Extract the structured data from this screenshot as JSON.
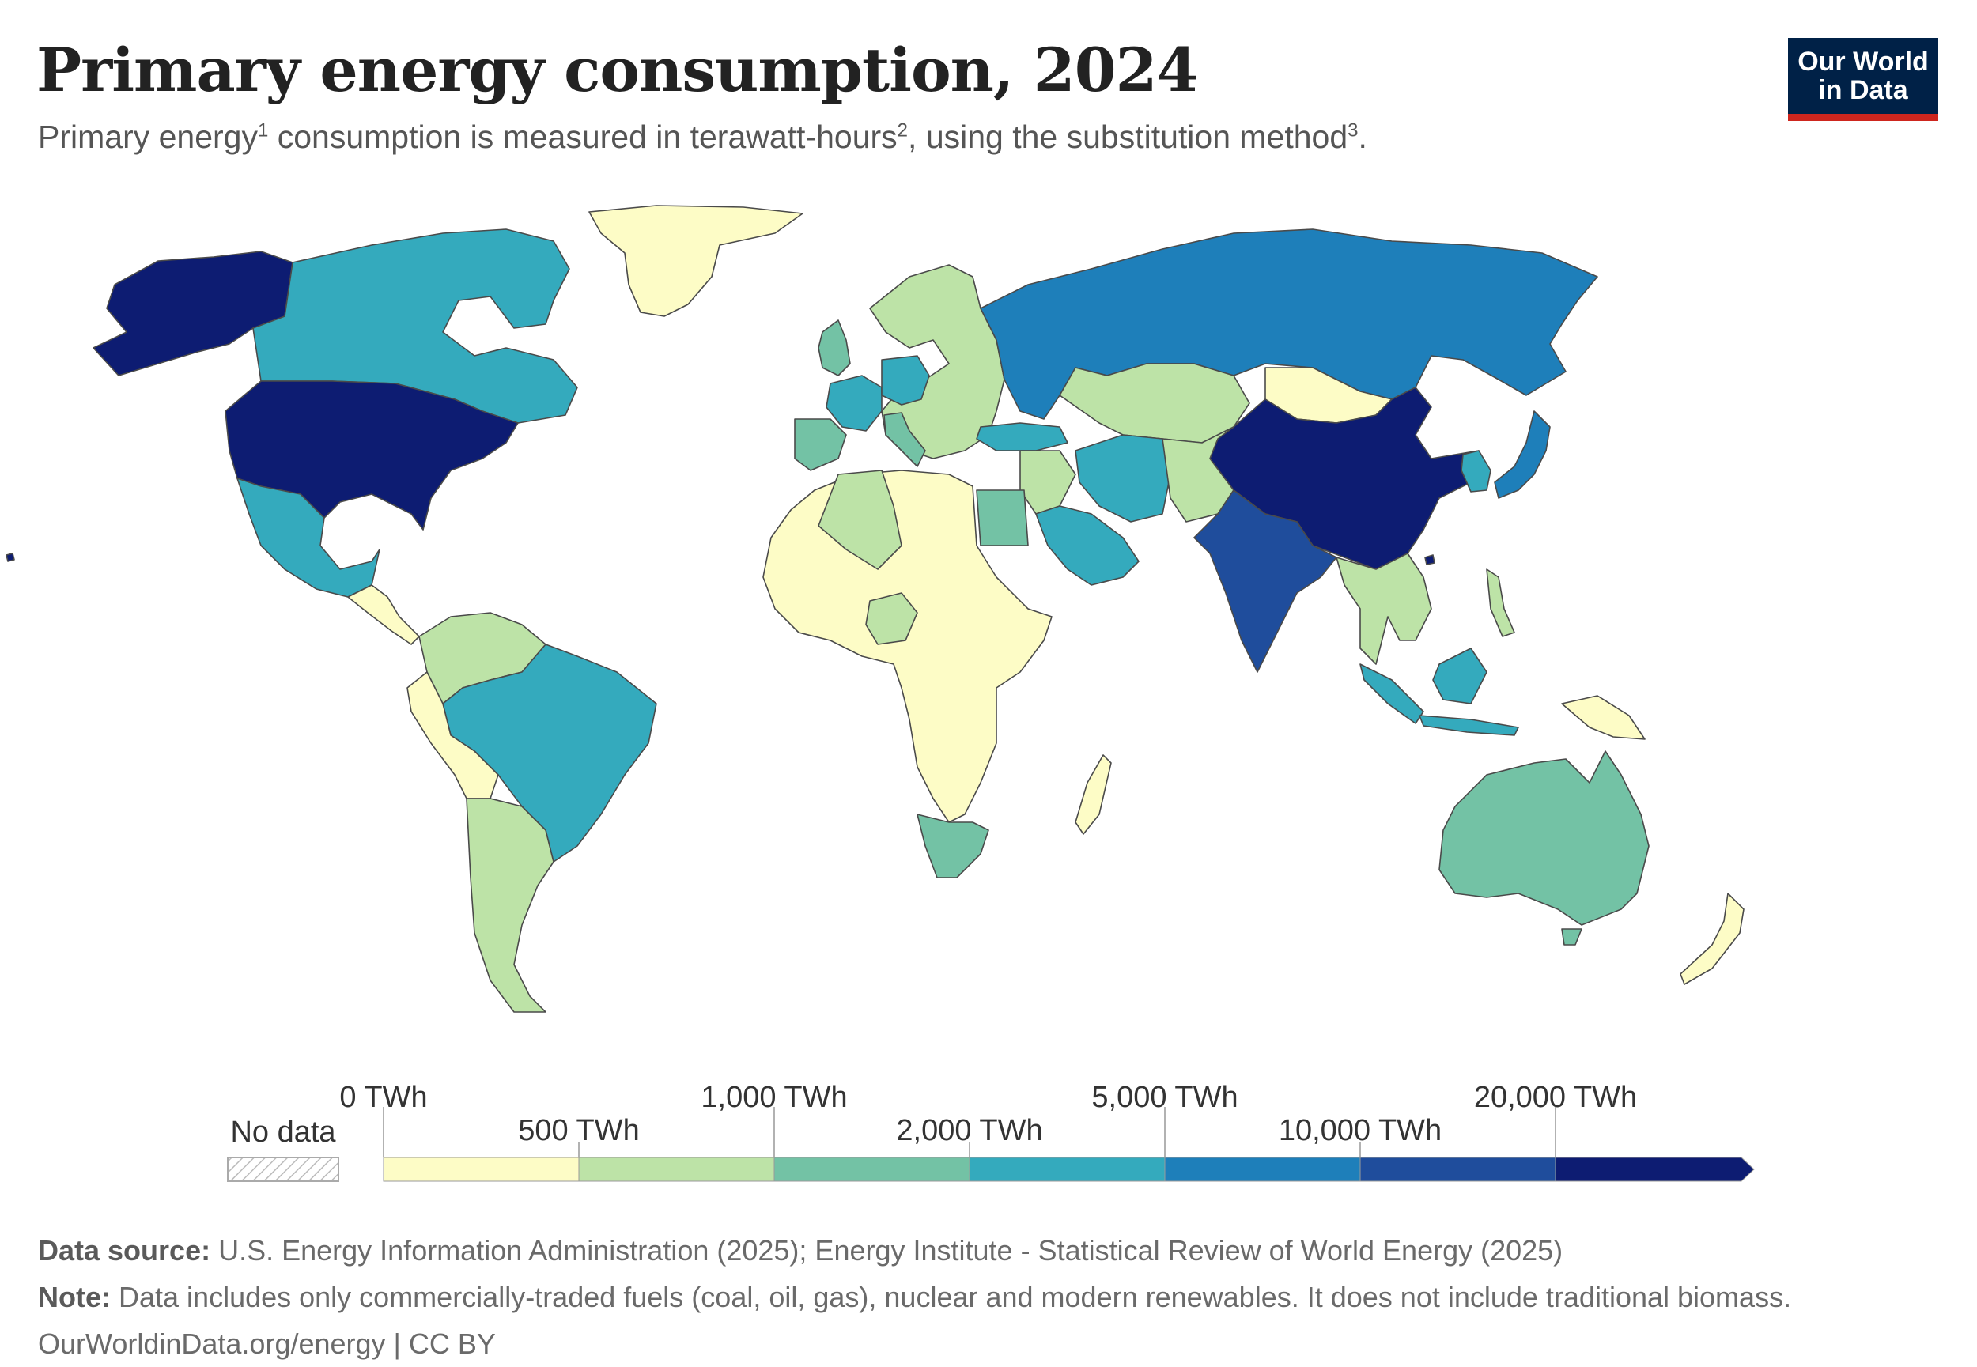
{
  "header": {
    "title": "Primary energy consumption, 2024",
    "subtitle_part1": "Primary energy",
    "subtitle_sup1": "1",
    "subtitle_part2": " consumption is measured in terawatt-hours",
    "subtitle_sup2": "2",
    "subtitle_part3": ", using the substitution method",
    "subtitle_sup3": "3",
    "subtitle_part4": "."
  },
  "logo": {
    "line1": "Our World",
    "line2": "in Data",
    "bg_color": "#002147",
    "accent_color": "#ce261e"
  },
  "legend": {
    "no_data_label": "No data",
    "bins_top": [
      "0 TWh",
      "1,000 TWh",
      "5,000 TWh",
      "20,000 TWh"
    ],
    "bins_bottom": [
      "500 TWh",
      "2,000 TWh",
      "10,000 TWh"
    ],
    "colors": [
      "#fdfcc6",
      "#bde3a7",
      "#73c2a5",
      "#34aabd",
      "#1e7fba",
      "#1f4d9c",
      "#0d1c72"
    ]
  },
  "map_data": {
    "unit": "TWh",
    "year": 2024,
    "bin_by_region": {
      "usa": 6,
      "alaska": 6,
      "canada": 3,
      "mexico": 3,
      "greenland": 0,
      "brazil": 3,
      "argentina": 1,
      "south_america_rest": 0,
      "colombia": 1,
      "africa": 0,
      "egypt": 2,
      "algeria": 1,
      "nigeria": 1,
      "south_africa": 2,
      "madagascar": 0,
      "europe": 1,
      "france": 3,
      "germany": 3,
      "spain": 2,
      "italy": 2,
      "uk": 2,
      "russia": 4,
      "turkey": 3,
      "iran": 3,
      "saudi_arabia": 3,
      "middle_east_rest": 1,
      "kazakhstan": 1,
      "mongolia": 0,
      "china": 6,
      "india": 5,
      "south_east_asia": 1,
      "indonesia": 3,
      "japan": 4,
      "korea": 3,
      "australia": 2,
      "new_zealand": 0,
      "png": 0
    }
  },
  "footer": {
    "source_label": "Data source:",
    "source_text": " U.S. Energy Information Administration (2025); Energy Institute - Statistical Review of World Energy (2025)",
    "note_label": "Note:",
    "note_text": " Data includes only commercially-traded fuels (coal, oil, gas), nuclear and modern renewables. It does not include traditional biomass.",
    "url_text": "OurWorldinData.org/energy | CC BY"
  }
}
